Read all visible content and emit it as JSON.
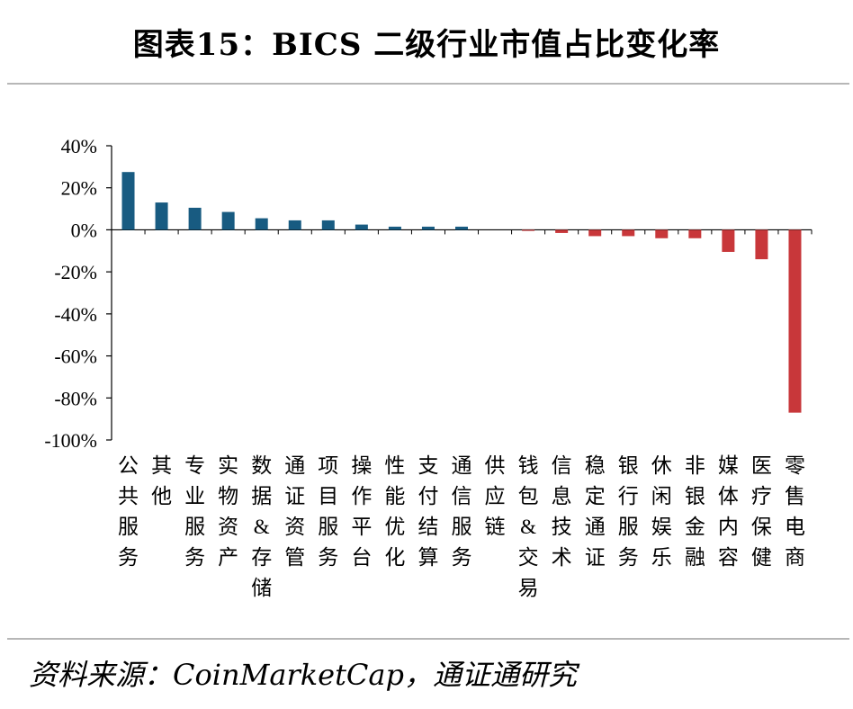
{
  "title": "图表15：BICS 二级行业市值占比变化率",
  "source": "资料来源：CoinMarketCap，通证通研究",
  "colors": {
    "positive": "#185b81",
    "negative": "#c8373a",
    "axis": "#000000",
    "rule": "#b7b7b7"
  },
  "chart_data": {
    "type": "bar",
    "title": "",
    "xlabel": "",
    "ylabel": "",
    "ylim": [
      -100,
      40
    ],
    "y_ticks": [
      40,
      20,
      0,
      -20,
      -40,
      -60,
      -80,
      -100
    ],
    "y_tick_labels": [
      "40%",
      "20%",
      "0%",
      "-20%",
      "-40%",
      "-60%",
      "-80%",
      "-100%"
    ],
    "grid": false,
    "legend": "none",
    "categories": [
      "公共服务",
      "其他",
      "专业服务",
      "实物资产",
      "数据&存储",
      "通证资管",
      "项目服务",
      "操作平台",
      "性能优化",
      "支付结算",
      "通信服务",
      "供应链",
      "钱包&交易",
      "信息技术",
      "稳定通证",
      "银行服务",
      "休闲娱乐",
      "非银金融",
      "媒体内容",
      "医疗保健",
      "零售电商"
    ],
    "values": [
      27.5,
      13,
      10.5,
      8.5,
      5.5,
      4.5,
      4.5,
      2.5,
      1.5,
      1.5,
      1.5,
      0,
      -0.5,
      -1.5,
      -3,
      -3,
      -4,
      -4,
      -10.5,
      -14,
      -87
    ]
  }
}
